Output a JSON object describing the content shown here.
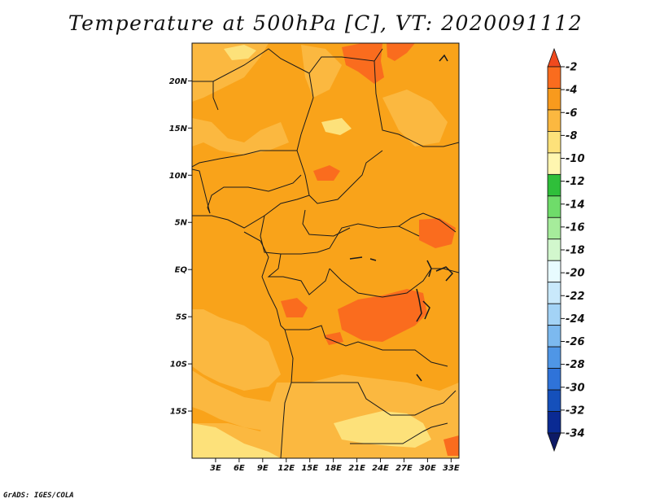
{
  "title": "Temperature at 500hPa [C], VT: 2020091112",
  "footer": "GrADS: IGES/COLA",
  "map": {
    "lon_range": [
      0,
      34
    ],
    "lat_range": [
      -20,
      24
    ],
    "x_ticks": [
      {
        "lon": 3,
        "label": "3E"
      },
      {
        "lon": 6,
        "label": "6E"
      },
      {
        "lon": 9,
        "label": "9E"
      },
      {
        "lon": 12,
        "label": "12E"
      },
      {
        "lon": 15,
        "label": "15E"
      },
      {
        "lon": 18,
        "label": "18E"
      },
      {
        "lon": 21,
        "label": "21E"
      },
      {
        "lon": 24,
        "label": "24E"
      },
      {
        "lon": 27,
        "label": "27E"
      },
      {
        "lon": 30,
        "label": "30E"
      },
      {
        "lon": 33,
        "label": "33E"
      }
    ],
    "y_ticks": [
      {
        "lat": 20,
        "label": "20N"
      },
      {
        "lat": 15,
        "label": "15N"
      },
      {
        "lat": 10,
        "label": "10N"
      },
      {
        "lat": 5,
        "label": "5N"
      },
      {
        "lat": 0,
        "label": "EQ"
      },
      {
        "lat": -5,
        "label": "5S"
      },
      {
        "lat": -10,
        "label": "10S"
      },
      {
        "lat": -15,
        "label": "15S"
      }
    ],
    "field_colors": {
      "background": "#f9a31a",
      "warmer": "#fa6c1e",
      "warm_mid": "#f89a1d",
      "cooler": "#fbb840",
      "coolest": "#fde17a",
      "borders": "#1a1a1a"
    }
  },
  "colorbar": {
    "levels": [
      "-2",
      "-4",
      "-6",
      "-8",
      "-10",
      "-12",
      "-14",
      "-16",
      "-18",
      "-20",
      "-22",
      "-24",
      "-26",
      "-28",
      "-30",
      "-32",
      "-34"
    ],
    "colors": [
      "#f04a1e",
      "#fa6c1e",
      "#f89a1d",
      "#fbb840",
      "#fde17a",
      "#fff6b0",
      "#2fbf3a",
      "#6fdc6a",
      "#a6ec9b",
      "#d2f7cd",
      "#e8fbff",
      "#c9e9fb",
      "#a3d3f6",
      "#7cb9ef",
      "#4f96e6",
      "#2f73d9",
      "#1550bb",
      "#0a2a93",
      "#0d1a66"
    ]
  }
}
